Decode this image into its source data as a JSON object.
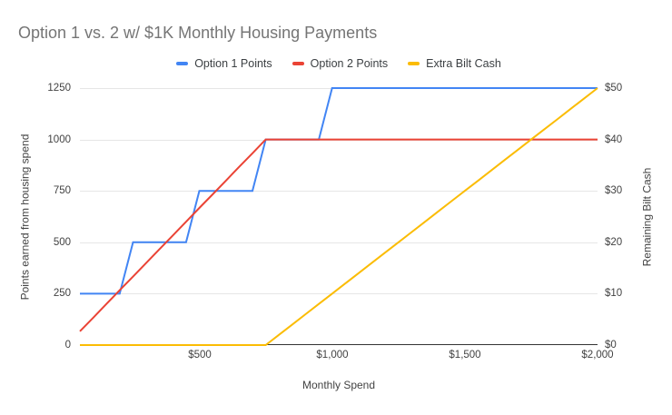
{
  "title": "Option 1 vs. 2 w/ $1K Monthly Housing Payments",
  "colors": {
    "background": "#ffffff",
    "title_text": "#757575",
    "axis_text": "#424242",
    "gridline": "#e6e6e6",
    "axis_line": "#333333",
    "series_blue": "#4285f4",
    "series_red": "#ea4335",
    "series_yellow": "#fbbc04"
  },
  "axes": {
    "left": {
      "title": "Points earned from housing spend",
      "ticks": [
        "1250",
        "1000",
        "750",
        "500",
        "250",
        "0"
      ]
    },
    "right": {
      "title": "Remaining Bilt Cash",
      "ticks": [
        "$50",
        "$40",
        "$30",
        "$20",
        "$10",
        "$0"
      ]
    },
    "x": {
      "title": "Monthly Spend",
      "ticks": [
        "$500",
        "$1,000",
        "$1,500",
        "$2,000"
      ]
    }
  },
  "chart_data": {
    "type": "line",
    "title": "Option 1 vs. 2 w/ $1K Monthly Housing Payments",
    "xlabel": "Monthly Spend",
    "ylabel_left": "Points earned from housing spend",
    "ylabel_right": "Remaining Bilt Cash",
    "xlim": [
      50,
      2000
    ],
    "ylim_left": [
      0,
      1250
    ],
    "ylim_right": [
      0,
      50
    ],
    "x_tick_values": [
      500,
      1000,
      1500,
      2000
    ],
    "left_tick_values": [
      0,
      250,
      500,
      750,
      1000,
      1250
    ],
    "right_tick_values": [
      0,
      10,
      20,
      30,
      40,
      50
    ],
    "grid": true,
    "legend_position": "top",
    "x": [
      50,
      100,
      150,
      200,
      250,
      300,
      350,
      400,
      450,
      500,
      550,
      600,
      650,
      700,
      750,
      800,
      850,
      900,
      950,
      1000,
      1050,
      1100,
      1150,
      1200,
      1250,
      1300,
      1350,
      1400,
      1450,
      1500,
      1550,
      1600,
      1650,
      1700,
      1750,
      1800,
      1850,
      1900,
      1950,
      2000
    ],
    "series": [
      {
        "name": "Option 1 Points",
        "color": "#4285f4",
        "axis": "left",
        "values": [
          250,
          250,
          250,
          250,
          500,
          500,
          500,
          500,
          500,
          750,
          750,
          750,
          750,
          750,
          1000,
          1000,
          1000,
          1000,
          1000,
          1250,
          1250,
          1250,
          1250,
          1250,
          1250,
          1250,
          1250,
          1250,
          1250,
          1250,
          1250,
          1250,
          1250,
          1250,
          1250,
          1250,
          1250,
          1250,
          1250,
          1250
        ]
      },
      {
        "name": "Option 2 Points",
        "color": "#ea4335",
        "axis": "left",
        "values": [
          67,
          133,
          200,
          267,
          333,
          400,
          467,
          533,
          600,
          667,
          733,
          800,
          867,
          933,
          1000,
          1000,
          1000,
          1000,
          1000,
          1000,
          1000,
          1000,
          1000,
          1000,
          1000,
          1000,
          1000,
          1000,
          1000,
          1000,
          1000,
          1000,
          1000,
          1000,
          1000,
          1000,
          1000,
          1000,
          1000,
          1000
        ]
      },
      {
        "name": "Extra Bilt Cash",
        "color": "#fbbc04",
        "axis": "right",
        "values": [
          0,
          0,
          0,
          0,
          0,
          0,
          0,
          0,
          0,
          0,
          0,
          0,
          0,
          0,
          0,
          2,
          4,
          6,
          8,
          10,
          12,
          14,
          16,
          18,
          20,
          22,
          24,
          26,
          28,
          30,
          32,
          34,
          36,
          38,
          40,
          42,
          44,
          46,
          48,
          50
        ]
      }
    ]
  }
}
